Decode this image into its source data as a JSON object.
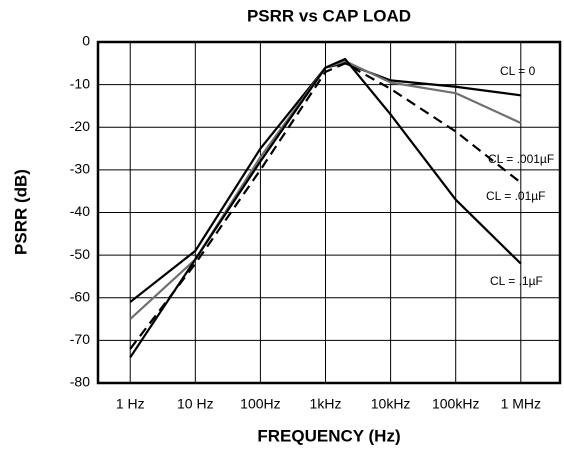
{
  "chart_data": {
    "type": "line",
    "title": "PSRR vs CAP LOAD",
    "x_label": "FREQUENCY (Hz)",
    "y_label": "PSRR (dB)",
    "log_x": true,
    "grid": true,
    "x": [
      1,
      10,
      100,
      1000,
      2000,
      10000,
      100000,
      1000000
    ],
    "xlim": [
      0.32,
      4000000
    ],
    "ylim": [
      -80,
      0
    ],
    "xticks": [
      {
        "value": 1,
        "label": "1 Hz"
      },
      {
        "value": 10,
        "label": "10 Hz"
      },
      {
        "value": 100,
        "label": "100Hz"
      },
      {
        "value": 1000,
        "label": "1kHz"
      },
      {
        "value": 10000,
        "label": "10kHz"
      },
      {
        "value": 100000,
        "label": "100kHz"
      },
      {
        "value": 1000000,
        "label": "1 MHz"
      }
    ],
    "yticks": [
      0,
      -10,
      -20,
      -30,
      -40,
      -50,
      -60,
      -70,
      -80
    ],
    "series": [
      {
        "name": "CL = 0",
        "color": "#000000",
        "dashed": false,
        "values": [
          -61,
          -49,
          -25,
          -6,
          -5,
          -9,
          -10.5,
          -12.5
        ]
      },
      {
        "name": "CL = .001µF",
        "color": "#707070",
        "dashed": false,
        "values": [
          -65,
          -51,
          -27,
          -6,
          -4.5,
          -9.5,
          -12,
          -19
        ]
      },
      {
        "name": "CL = .01µF",
        "color": "#000000",
        "dashed": true,
        "values": [
          -72,
          -52,
          -30,
          -7,
          -5,
          -11,
          -21,
          -33
        ]
      },
      {
        "name": "CL = .1µF",
        "color": "#000000",
        "dashed": false,
        "values": [
          -74,
          -51,
          -28,
          -6,
          -4,
          -17,
          -37,
          -52
        ]
      }
    ]
  }
}
